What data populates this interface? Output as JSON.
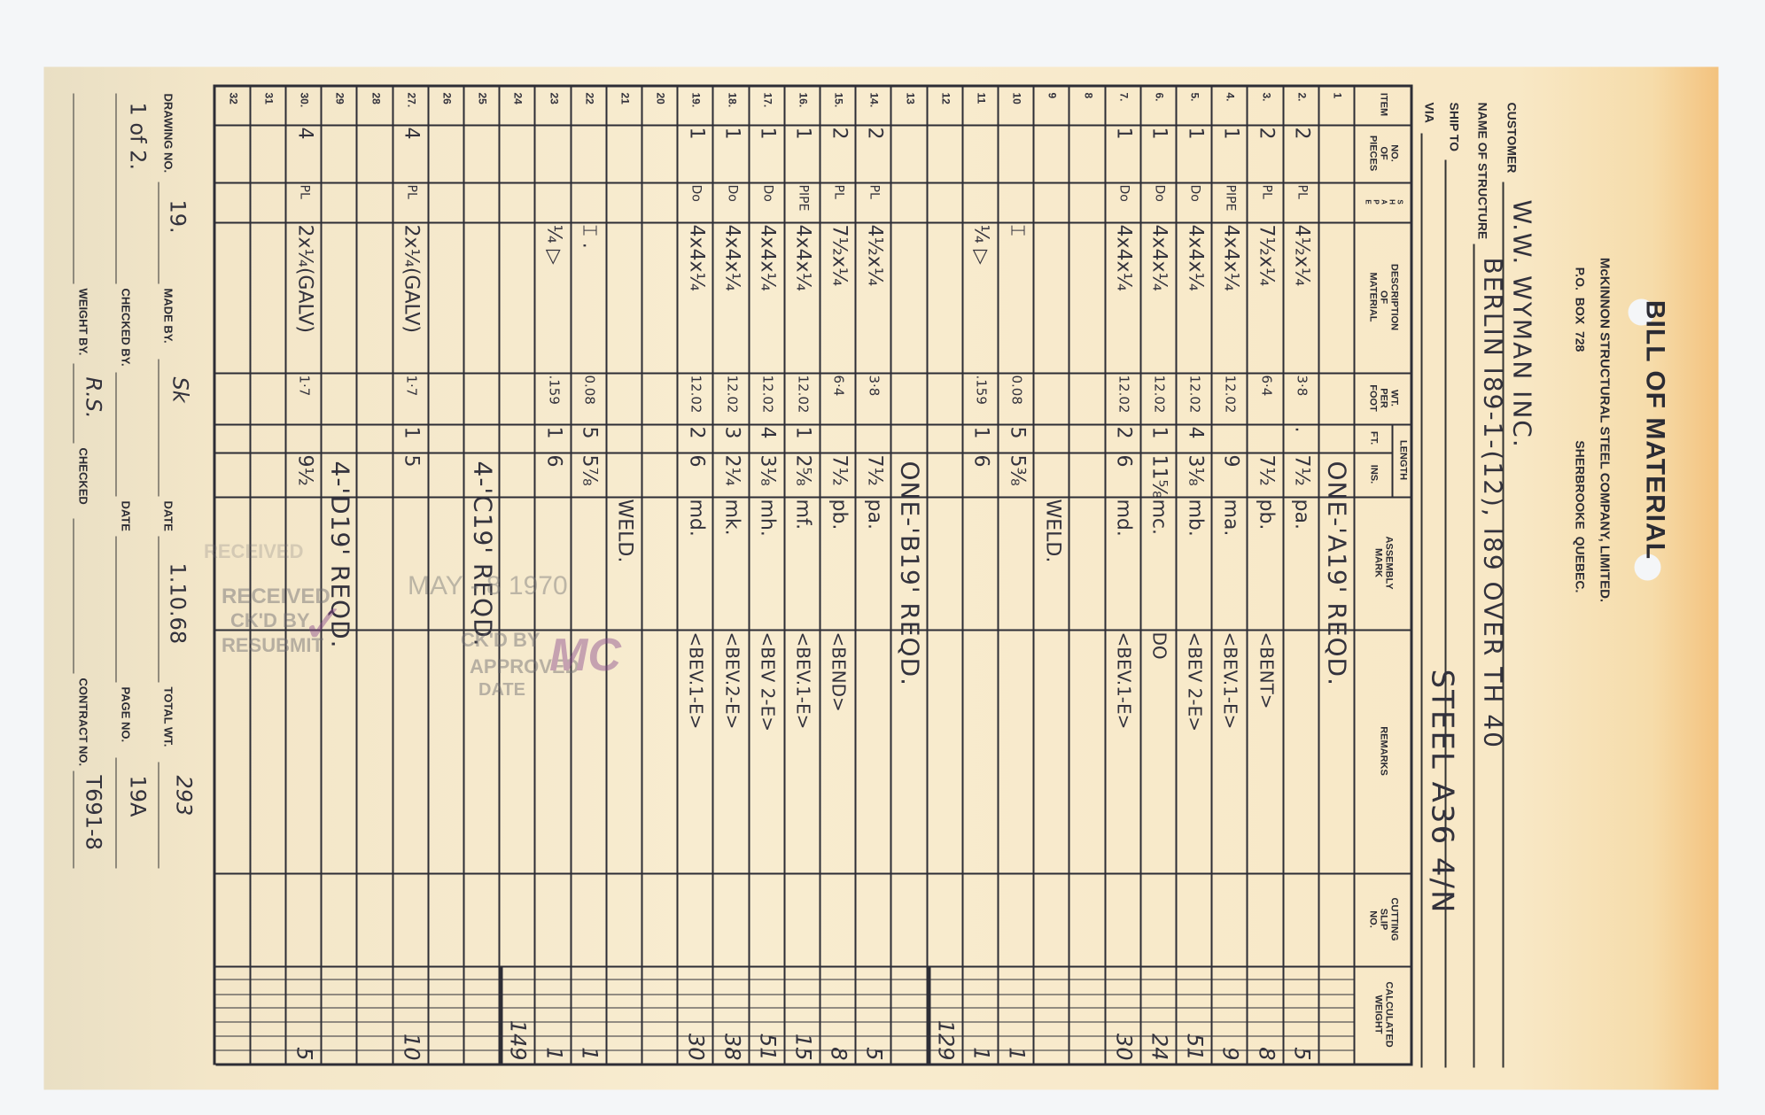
{
  "header": {
    "title": "BILL OF MATERIAL",
    "company": "McKINNON STRUCTURAL STEEL COMPANY, LIMITED.",
    "po_box": "P.O. BOX 728",
    "city": "SHERBROOKE QUEBEC."
  },
  "fields": {
    "customer_label": "CUSTOMER",
    "customer": "W.W. WYMAN INC.",
    "structure_label": "NAME OF STRUCTURE",
    "structure": "BERLIN I89-1-(12), I89 OVER TH 40",
    "ship_to_label": "SHIP TO",
    "ship_to": "STEEL A36 4/N",
    "via_label": "VIA"
  },
  "columns": [
    "ITEM",
    "NO.\nOF\nPIECES",
    "S\nH\nA\nP\nE",
    "DESCRIPTION\nOF\nMATERIAL",
    "WT.\nPER\nFOOT",
    "FT.",
    "INS.",
    "ASSEMBLY\nMARK",
    "REMARKS",
    "CUTTING\nSLIP\nNO.",
    "CALCULATED\nWEIGHT"
  ],
  "length_label": "LENGTH",
  "rows": [
    {
      "item": "1",
      "note": "ONE-'A19'  REQD."
    },
    {
      "item": "2.",
      "pieces": "2",
      "shape": "PL",
      "desc": "4½x¼",
      "wpf": "3·8",
      "ft": ".",
      "ins": "7½",
      "mark": "pa.",
      "weight": "5"
    },
    {
      "item": "3.",
      "pieces": "2",
      "shape": "PL",
      "desc": "7½x¼",
      "wpf": "6·4",
      "ins": "7½",
      "mark": "pb.",
      "remarks": "<BENT>",
      "weight": "8"
    },
    {
      "item": "4.",
      "pieces": "1",
      "shape": "PIPE",
      "desc": "4x4x¼",
      "wpf": "12.02",
      "ins": "9",
      "mark": "ma.",
      "remarks": "<BEV.1-E>",
      "weight": "9"
    },
    {
      "item": "5.",
      "pieces": "1",
      "shape": "Do",
      "desc": "4x4x¼",
      "wpf": "12.02",
      "ft": "4",
      "ins": "3⅛",
      "mark": "mb.",
      "remarks": "<BEV 2-E>",
      "weight": "51"
    },
    {
      "item": "6.",
      "pieces": "1",
      "shape": "Do",
      "desc": "4x4x¼",
      "wpf": "12.02",
      "ft": "1",
      "ins": "11⅝",
      "mark": "mc.",
      "remarks": "DO",
      "weight": "24"
    },
    {
      "item": "7.",
      "pieces": "1",
      "shape": "Do",
      "desc": "4x4x¼",
      "wpf": "12.02",
      "ft": "2",
      "ins": "6",
      "mark": "md.",
      "remarks": "<BEV.1-E>",
      "weight": "30"
    },
    {
      "item": "8"
    },
    {
      "item": "9",
      "mark": "WELD."
    },
    {
      "item": "10",
      "desc": "  ⌶",
      "wpf": "0.08",
      "ft": "5",
      "ins": "5⅜",
      "weight": "1"
    },
    {
      "item": "11",
      "desc": "  ¼ ▷",
      "wpf": ".159",
      "ft": "1",
      "ins": "6",
      "weight": "1"
    },
    {
      "item": "12",
      "weight": "129"
    },
    {
      "item": "13",
      "note": "ONE-'B19'  REQD."
    },
    {
      "item": "14.",
      "pieces": "2",
      "shape": "PL",
      "desc": "4½x¼",
      "wpf": "3·8",
      "ins": "7½",
      "mark": "pa.",
      "weight": "5"
    },
    {
      "item": "15.",
      "pieces": "2",
      "shape": "PL",
      "desc": "7½x¼",
      "wpf": "6·4",
      "ins": "7½",
      "mark": "pb.",
      "remarks": "<BEND>",
      "weight": "8"
    },
    {
      "item": "16.",
      "pieces": "1",
      "shape": "PIPE",
      "desc": "4x4x¼",
      "wpf": "12.02",
      "ft": "1",
      "ins": "2⅝",
      "mark": "mf.",
      "remarks": "<BEV.1-E>",
      "weight": "15"
    },
    {
      "item": "17.",
      "pieces": "1",
      "shape": "Do",
      "desc": "4x4x¼",
      "wpf": "12.02",
      "ft": "4",
      "ins": "3⅛",
      "mark": "mh.",
      "remarks": "<BEV 2-E>",
      "weight": "51"
    },
    {
      "item": "18.",
      "pieces": "1",
      "shape": "Do",
      "desc": "4x4x¼",
      "wpf": "12.02",
      "ft": "3",
      "ins": "2¼",
      "mark": "mk.",
      "remarks": "<BEV.2-E>",
      "weight": "38"
    },
    {
      "item": "19.",
      "pieces": "1",
      "shape": "Do",
      "desc": "4x4x¼",
      "wpf": "12.02",
      "ft": "2",
      "ins": "6",
      "mark": "md.",
      "remarks": "<BEV.1-E>",
      "weight": "30"
    },
    {
      "item": "20"
    },
    {
      "item": "21",
      "mark": "WELD."
    },
    {
      "item": "22",
      "desc": "  ⌶ .",
      "wpf": "0.08",
      "ft": "5",
      "ins": "5⅞",
      "weight": "1"
    },
    {
      "item": "23",
      "desc": "  ¼ ▷",
      "wpf": ".159",
      "ft": "1",
      "ins": "6",
      "weight": "1"
    },
    {
      "item": "24",
      "weight": "149"
    },
    {
      "item": "25",
      "note": "4-'C19'  REQD."
    },
    {
      "item": "26"
    },
    {
      "item": "27.",
      "pieces": "4",
      "shape": "PL",
      "desc": "2x¼(GALV)",
      "wpf": "1·7",
      "ft": "1",
      "ins": "5",
      "weight": "10"
    },
    {
      "item": "28"
    },
    {
      "item": "29",
      "note": "4-'D19'  REQD."
    },
    {
      "item": "30.",
      "pieces": "4",
      "shape": "PL",
      "desc": "2x¼(GALV)",
      "wpf": "1·7",
      "ins": "9½",
      "weight": "5"
    },
    {
      "item": "31"
    },
    {
      "item": "32"
    }
  ],
  "footer": {
    "drawing_no_label": "DRAWING NO.",
    "drawing_no": "19.",
    "drawing_sheet": "1 of 2.",
    "made_by_label": "MADE BY.",
    "made_by": "Sk",
    "checked_by_label": "CHECKED BY.",
    "weight_by_label": "WEIGHT BY.",
    "weight_by": "R.S.",
    "date_label": "DATE",
    "date": "1.10.68",
    "date2_label": "DATE",
    "checked_label": "CHECKED",
    "total_wt_label": "TOTAL WT.",
    "total_wt": "293",
    "page_no_label": "PAGE NO.",
    "page_no": "19A",
    "contract_no_label": "CONTRACT NO.",
    "contract_no": "T691-8"
  },
  "stamp": {
    "received": "RECEIVED",
    "ckd_by": "CK'D BY",
    "resubmit": "RESUBMIT",
    "date_stamp": "MAY - 8 1970",
    "ckd_by_2": "CK'D BY",
    "approved": "APPROVED",
    "date": "DATE",
    "initials": "MC",
    "ink_color": "#8a4a8c"
  }
}
